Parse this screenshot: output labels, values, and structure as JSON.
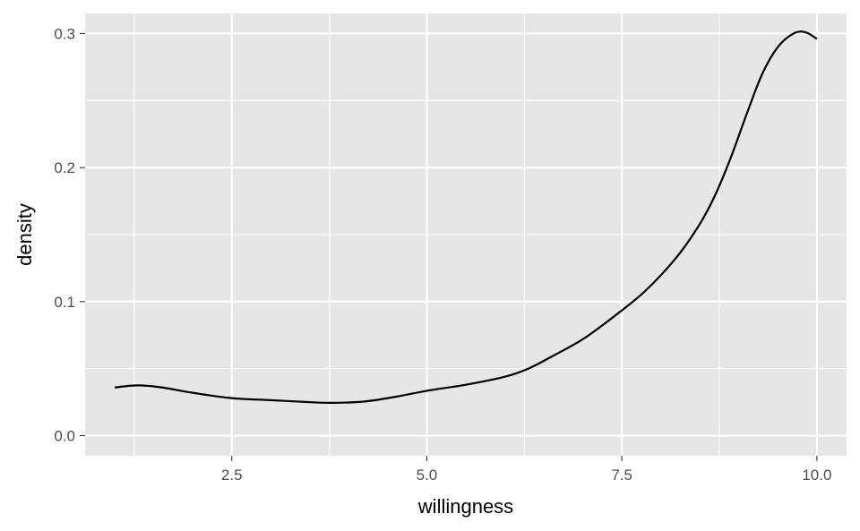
{
  "chart_data": {
    "type": "line",
    "title": "",
    "xlabel": "willingness",
    "ylabel": "density",
    "xlim": [
      0.62,
      10.38
    ],
    "ylim": [
      -0.015,
      0.315
    ],
    "x_ticks": [
      2.5,
      5.0,
      7.5,
      10.0
    ],
    "x_tick_labels": [
      "2.5",
      "5.0",
      "7.5",
      "10.0"
    ],
    "y_ticks": [
      0.0,
      0.1,
      0.2,
      0.3
    ],
    "y_tick_labels": [
      "0.0",
      "0.1",
      "0.2",
      "0.3"
    ],
    "grid": true,
    "colors": {
      "panel": "#e6e6e6",
      "grid": "#ffffff",
      "line": "#000000",
      "tick_text": "#4d4d4d"
    },
    "series": [
      {
        "x": [
          1.0,
          1.3,
          1.6,
          2.0,
          2.5,
          3.0,
          3.5,
          3.8,
          4.2,
          4.6,
          5.0,
          5.5,
          6.0,
          6.3,
          6.6,
          7.0,
          7.4,
          7.8,
          8.2,
          8.5,
          8.7,
          8.9,
          9.1,
          9.3,
          9.5,
          9.7,
          9.85,
          10.0
        ],
        "y": [
          0.036,
          0.0375,
          0.036,
          0.032,
          0.028,
          0.0265,
          0.025,
          0.0245,
          0.0255,
          0.029,
          0.0335,
          0.038,
          0.044,
          0.05,
          0.059,
          0.072,
          0.089,
          0.108,
          0.133,
          0.158,
          0.18,
          0.208,
          0.24,
          0.27,
          0.29,
          0.3,
          0.301,
          0.296
        ]
      }
    ]
  }
}
